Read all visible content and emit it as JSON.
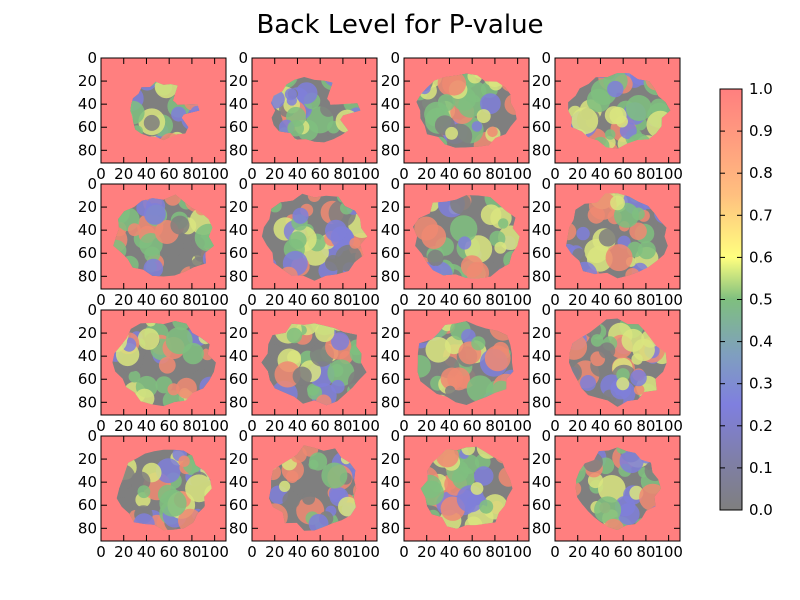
{
  "chart_data": {
    "type": "heatmap",
    "title": "Back Level for P-value",
    "grid": {
      "rows": 4,
      "cols": 4,
      "panel_count": 16
    },
    "image_size": {
      "width": 110,
      "height": 91
    },
    "x_ticks": [
      "0",
      "20",
      "40",
      "60",
      "80",
      "100"
    ],
    "y_ticks": [
      "0",
      "20",
      "40",
      "60",
      "80"
    ],
    "xlim": [
      0,
      110
    ],
    "ylim": [
      91,
      0
    ],
    "background_value": 1.0,
    "colorbar": {
      "colormap": "jet (alpha 0.5 over gray anatomy)",
      "range": [
        0.0,
        1.0
      ],
      "ticks": [
        "0.0",
        "0.1",
        "0.2",
        "0.3",
        "0.4",
        "0.5",
        "0.6",
        "0.7",
        "0.8",
        "0.9",
        "1.0"
      ]
    },
    "colors": {
      "background": "#ff7f7f",
      "low": "#7f7f7f",
      "blue": "#7f7fd9",
      "green": "#7fbf7f",
      "yellow": "#d9e57f",
      "high": "#f08a72"
    },
    "panels": [
      {
        "index": 1,
        "brain_extent": [
          0.55,
          0.55
        ],
        "seed": 11,
        "cut": true
      },
      {
        "index": 2,
        "brain_extent": [
          0.7,
          0.62
        ],
        "seed": 23,
        "cut": true
      },
      {
        "index": 3,
        "brain_extent": [
          0.78,
          0.7
        ],
        "seed": 37,
        "cut": false
      },
      {
        "index": 4,
        "brain_extent": [
          0.8,
          0.7
        ],
        "seed": 41,
        "cut": false
      },
      {
        "index": 5,
        "brain_extent": [
          0.82,
          0.78
        ],
        "seed": 53,
        "cut": false
      },
      {
        "index": 6,
        "brain_extent": [
          0.84,
          0.8
        ],
        "seed": 61,
        "cut": false
      },
      {
        "index": 7,
        "brain_extent": [
          0.84,
          0.8
        ],
        "seed": 73,
        "cut": false
      },
      {
        "index": 8,
        "brain_extent": [
          0.84,
          0.8
        ],
        "seed": 83,
        "cut": false
      },
      {
        "index": 9,
        "brain_extent": [
          0.82,
          0.8
        ],
        "seed": 97,
        "cut": false
      },
      {
        "index": 10,
        "brain_extent": [
          0.82,
          0.8
        ],
        "seed": 101,
        "cut": false
      },
      {
        "index": 11,
        "brain_extent": [
          0.8,
          0.8
        ],
        "seed": 113,
        "cut": false
      },
      {
        "index": 12,
        "brain_extent": [
          0.76,
          0.8
        ],
        "seed": 127,
        "cut": false
      },
      {
        "index": 13,
        "brain_extent": [
          0.74,
          0.8
        ],
        "seed": 139,
        "cut": false
      },
      {
        "index": 14,
        "brain_extent": [
          0.72,
          0.8
        ],
        "seed": 149,
        "cut": false
      },
      {
        "index": 15,
        "brain_extent": [
          0.7,
          0.78
        ],
        "seed": 157,
        "cut": false
      },
      {
        "index": 16,
        "brain_extent": [
          0.66,
          0.76
        ],
        "seed": 163,
        "cut": false
      }
    ]
  }
}
